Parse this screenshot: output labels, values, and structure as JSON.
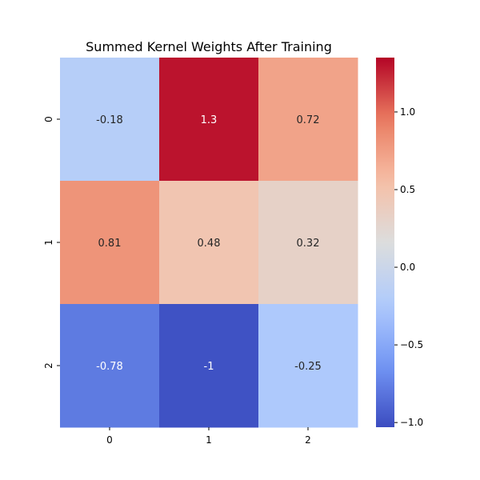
{
  "chart_data": {
    "type": "heatmap",
    "title": "Summed Kernel Weights After Training",
    "xlabel": "",
    "ylabel": "",
    "x_categories": [
      "0",
      "1",
      "2"
    ],
    "y_categories": [
      "0",
      "1",
      "2"
    ],
    "values": [
      [
        -0.18,
        1.3,
        0.72
      ],
      [
        0.81,
        0.48,
        0.32
      ],
      [
        -0.78,
        -1.0,
        -0.25
      ]
    ],
    "annotations": [
      [
        "-0.18",
        "1.3",
        "0.72"
      ],
      [
        "0.81",
        "0.48",
        "0.32"
      ],
      [
        "-0.78",
        "-1",
        "-0.25"
      ]
    ],
    "colormap": "coolwarm",
    "vmin": -1.03,
    "vmax": 1.35,
    "colorbar": {
      "ticks": [
        -1.0,
        -0.5,
        0.0,
        0.5,
        1.0
      ],
      "tick_labels": [
        "−1.0",
        "−0.5",
        "0.0",
        "0.5",
        "1.0"
      ]
    },
    "colors": {
      "cmap_stops": [
        "#3b4cc0",
        "#7396f5",
        "#b0cbfc",
        "#dcdddd",
        "#f6bfa6",
        "#ea7b60",
        "#b40426"
      ],
      "light_text": "#ffffff",
      "dark_text": "#262626"
    },
    "grid": false,
    "legend": "colorbar-right"
  }
}
